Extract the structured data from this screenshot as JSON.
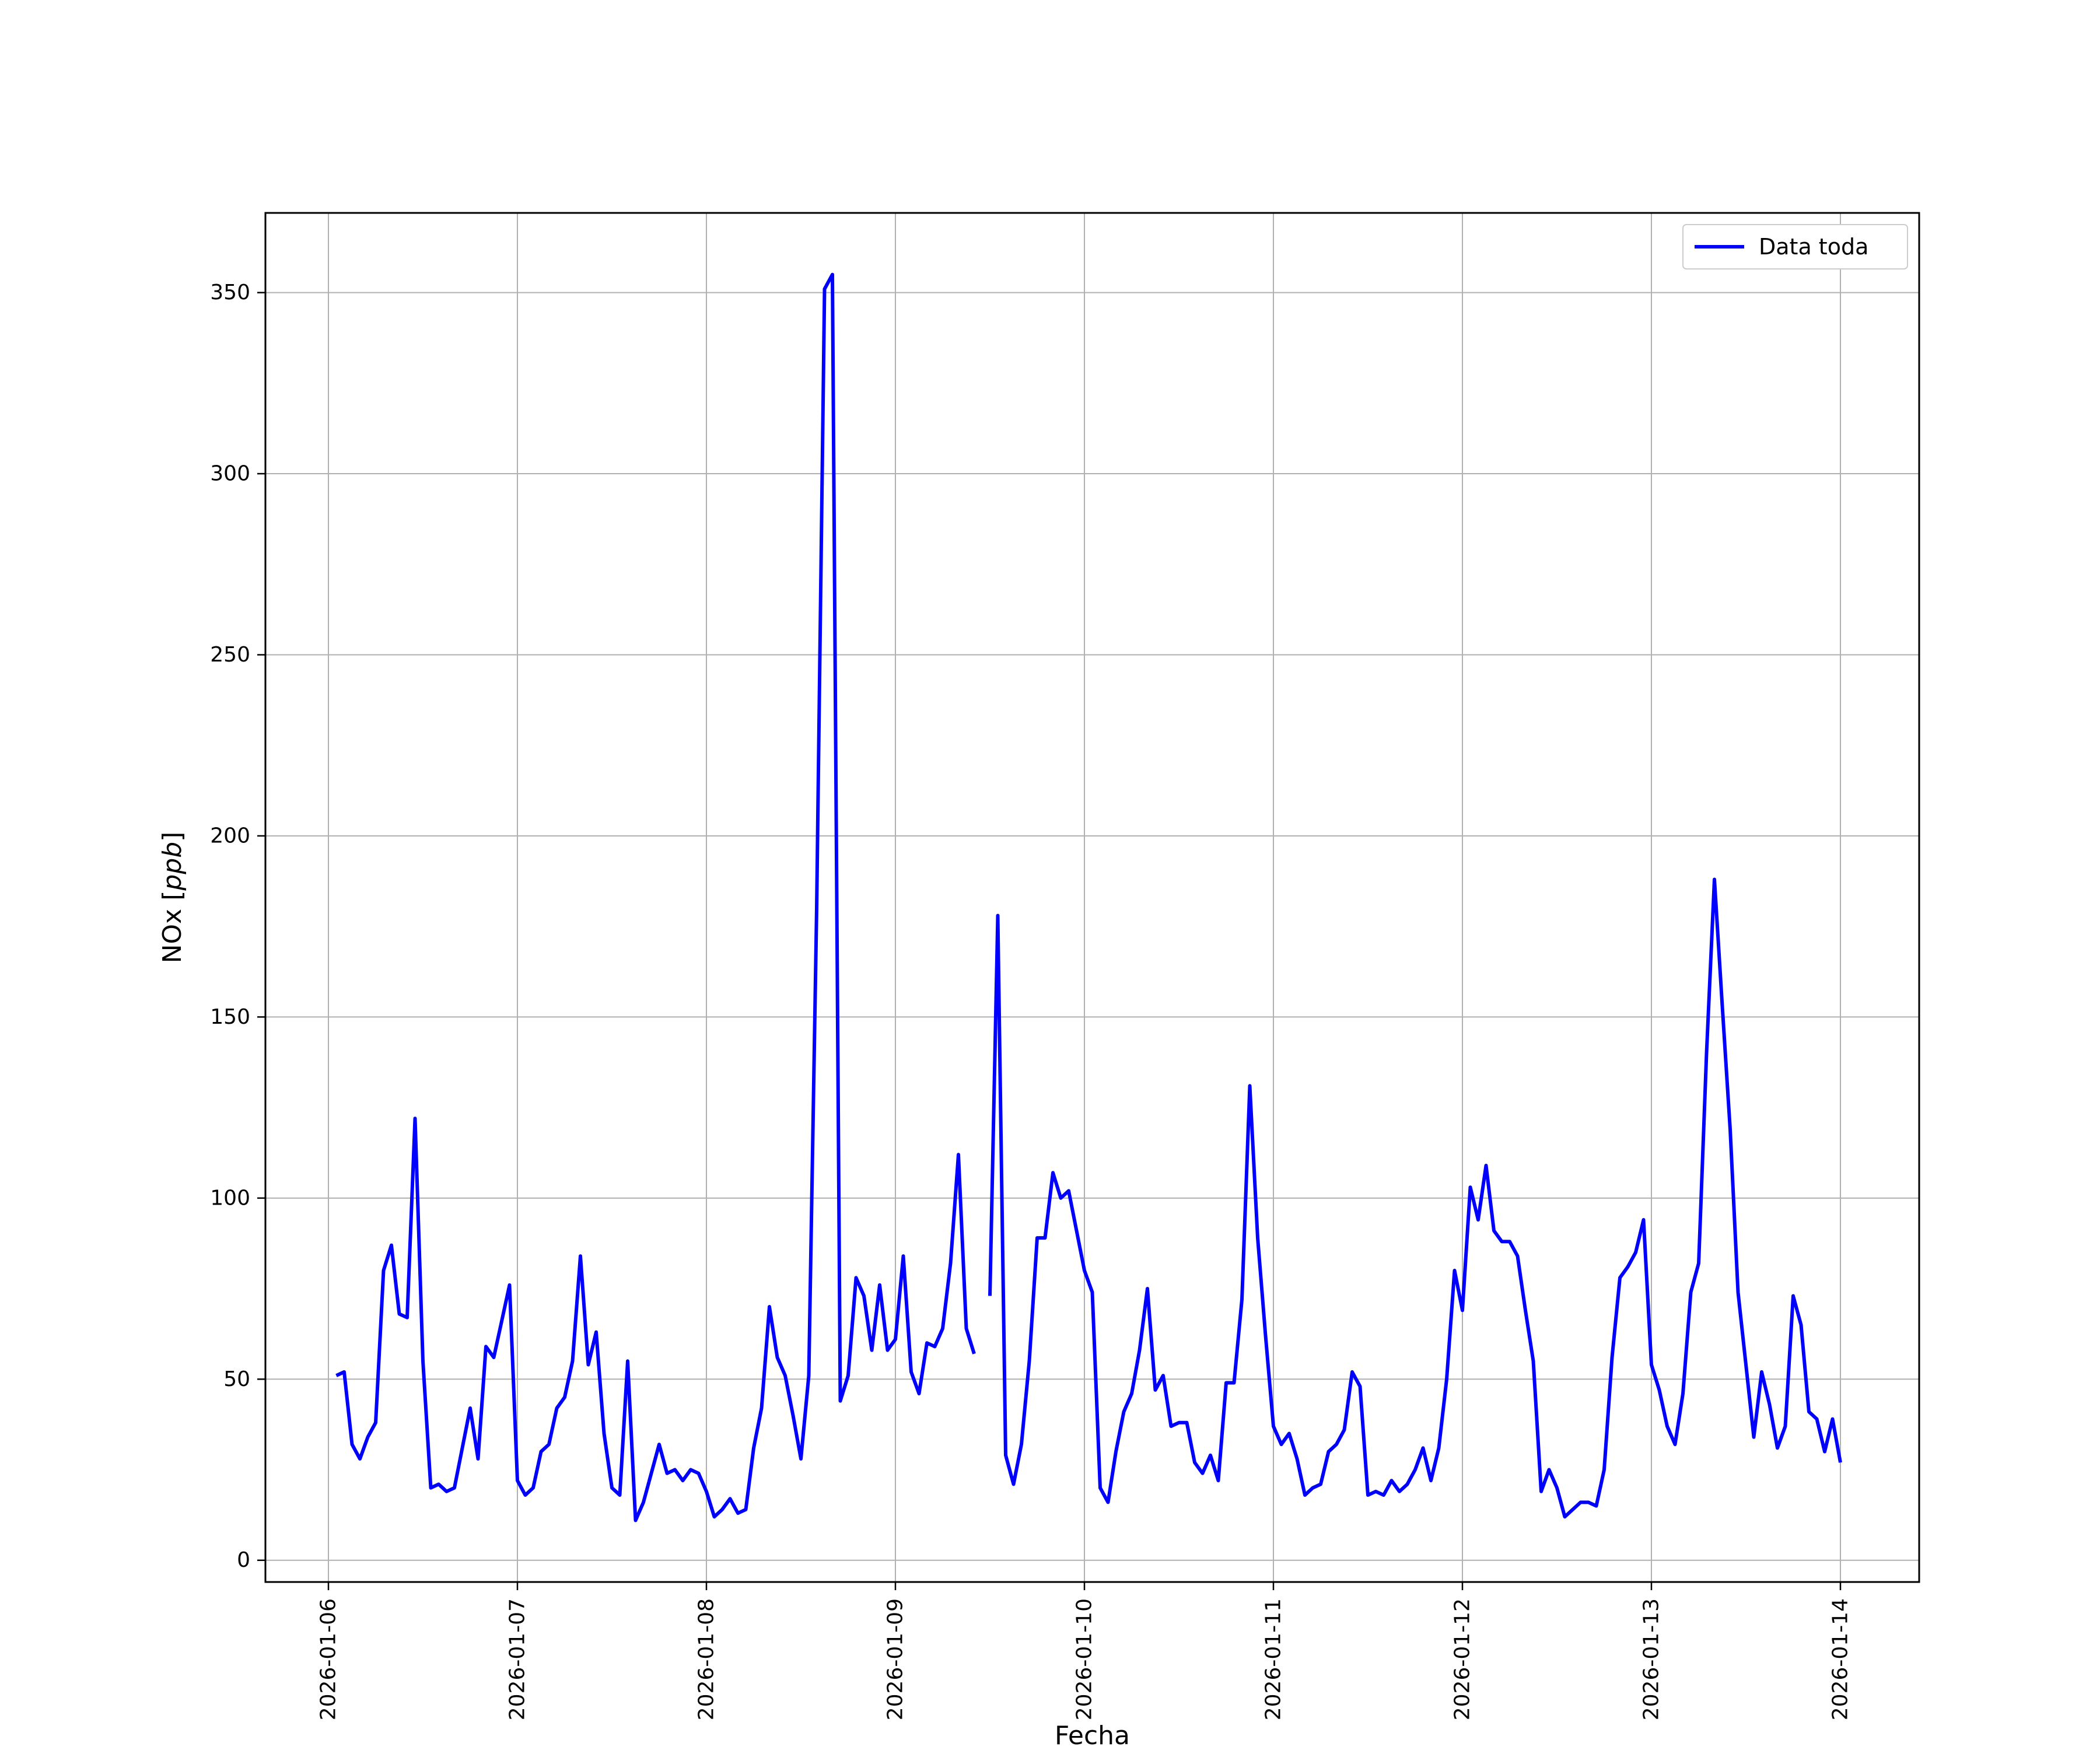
{
  "chart_data": {
    "type": "line",
    "xlabel": "Fecha",
    "ylabel": "NOx [ppb]",
    "ylabel_parts": {
      "main": "NOx [",
      "unit": "ppb",
      "close": "]"
    },
    "xlim": [
      "2026-01-05 16:00",
      "2026-01-14 10:00"
    ],
    "ylim": [
      -6,
      372
    ],
    "x_ticks": [
      "2026-01-06",
      "2026-01-07",
      "2026-01-08",
      "2026-01-09",
      "2026-01-10",
      "2026-01-11",
      "2026-01-12",
      "2026-01-13",
      "2026-01-14"
    ],
    "y_ticks": [
      0,
      50,
      100,
      150,
      200,
      250,
      300,
      350
    ],
    "grid": true,
    "legend": {
      "position": "top-right",
      "entries": [
        "Data toda"
      ]
    },
    "series": [
      {
        "name": "Data toda",
        "color": "#0000ff",
        "x_start": "2026-01-06 01:00",
        "x_step_hours": 1,
        "values": [
          51,
          52,
          32,
          28,
          34,
          38,
          80,
          87,
          68,
          67,
          122,
          55,
          20,
          21,
          19,
          20,
          31,
          42,
          28,
          59,
          56,
          66,
          76,
          22,
          18,
          20,
          30,
          32,
          42,
          45,
          55,
          84,
          54,
          63,
          35,
          20,
          18,
          55,
          11,
          16,
          24,
          32,
          24,
          25,
          22,
          25,
          24,
          19,
          12,
          14,
          17,
          13,
          14,
          31,
          42,
          70,
          56,
          51,
          40,
          28,
          51,
          180,
          351,
          355,
          44,
          51,
          78,
          73,
          58,
          76,
          58,
          61,
          84,
          52,
          46,
          60,
          59,
          64,
          82,
          112,
          64,
          57,
          null,
          73,
          178,
          29,
          21,
          32,
          55,
          89,
          89,
          107,
          100,
          102,
          91,
          80,
          74,
          20,
          16,
          30,
          41,
          46,
          58,
          75,
          47,
          51,
          37,
          38,
          38,
          27,
          24,
          29,
          22,
          49,
          49,
          72,
          131,
          89,
          62,
          37,
          32,
          35,
          28,
          18,
          20,
          21,
          30,
          32,
          36,
          52,
          48,
          18,
          19,
          18,
          22,
          19,
          21,
          25,
          31,
          22,
          31,
          50,
          80,
          69,
          103,
          94,
          109,
          91,
          88,
          88,
          84,
          69,
          55,
          19,
          25,
          20,
          12,
          14,
          16,
          16,
          15,
          25,
          56,
          78,
          81,
          85,
          94,
          54,
          47,
          37,
          32,
          46,
          74,
          82,
          140,
          188,
          153,
          119,
          74,
          54,
          34,
          52,
          43,
          31,
          37,
          73,
          65,
          41,
          39,
          30,
          39,
          27
        ]
      }
    ]
  }
}
